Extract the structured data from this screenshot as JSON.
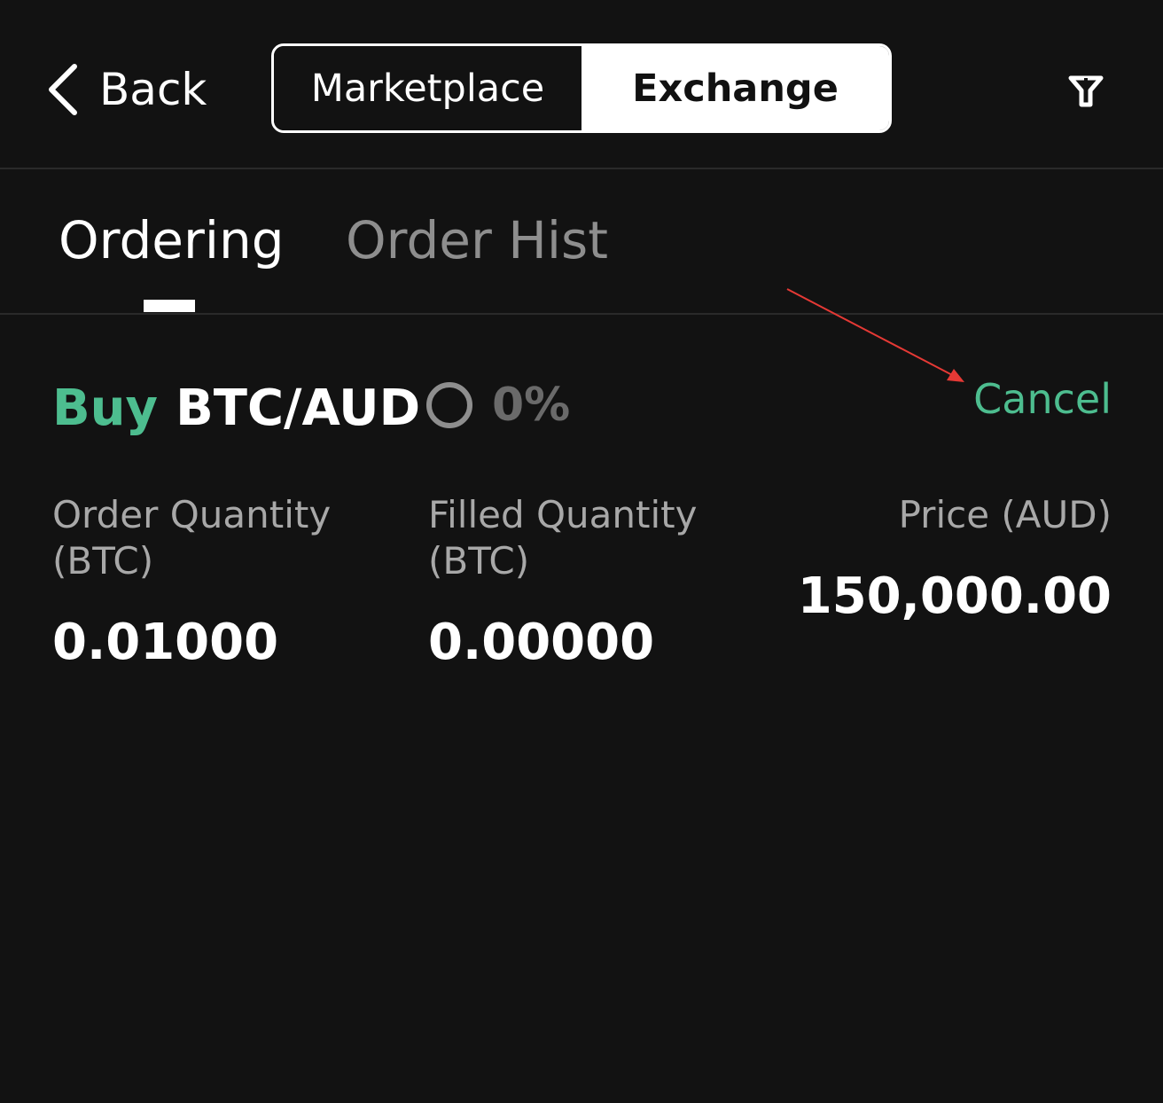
{
  "header": {
    "back_label": "Back",
    "segments": [
      {
        "label": "Marketplace",
        "active": false
      },
      {
        "label": "Exchange",
        "active": true
      }
    ],
    "filter_icon": "filter-icon"
  },
  "tabs": [
    {
      "label": "Ordering",
      "active": true
    },
    {
      "label": "Order Hist",
      "active": false
    }
  ],
  "order": {
    "side": "Buy",
    "pair": "BTC/AUD",
    "progress": "0%",
    "cancel_label": "Cancel",
    "order_quantity_label": "Order Quantity (BTC)",
    "order_quantity_value": "0.01000",
    "filled_quantity_label": "Filled Quantity (BTC)",
    "filled_quantity_value": "0.00000",
    "price_label": "Price (AUD)",
    "price_value": "150,000.00"
  },
  "colors": {
    "background": "#121212",
    "accent_green": "#4dbd8f",
    "muted_text": "#a8a8a8",
    "annotation_arrow": "#e53935"
  }
}
